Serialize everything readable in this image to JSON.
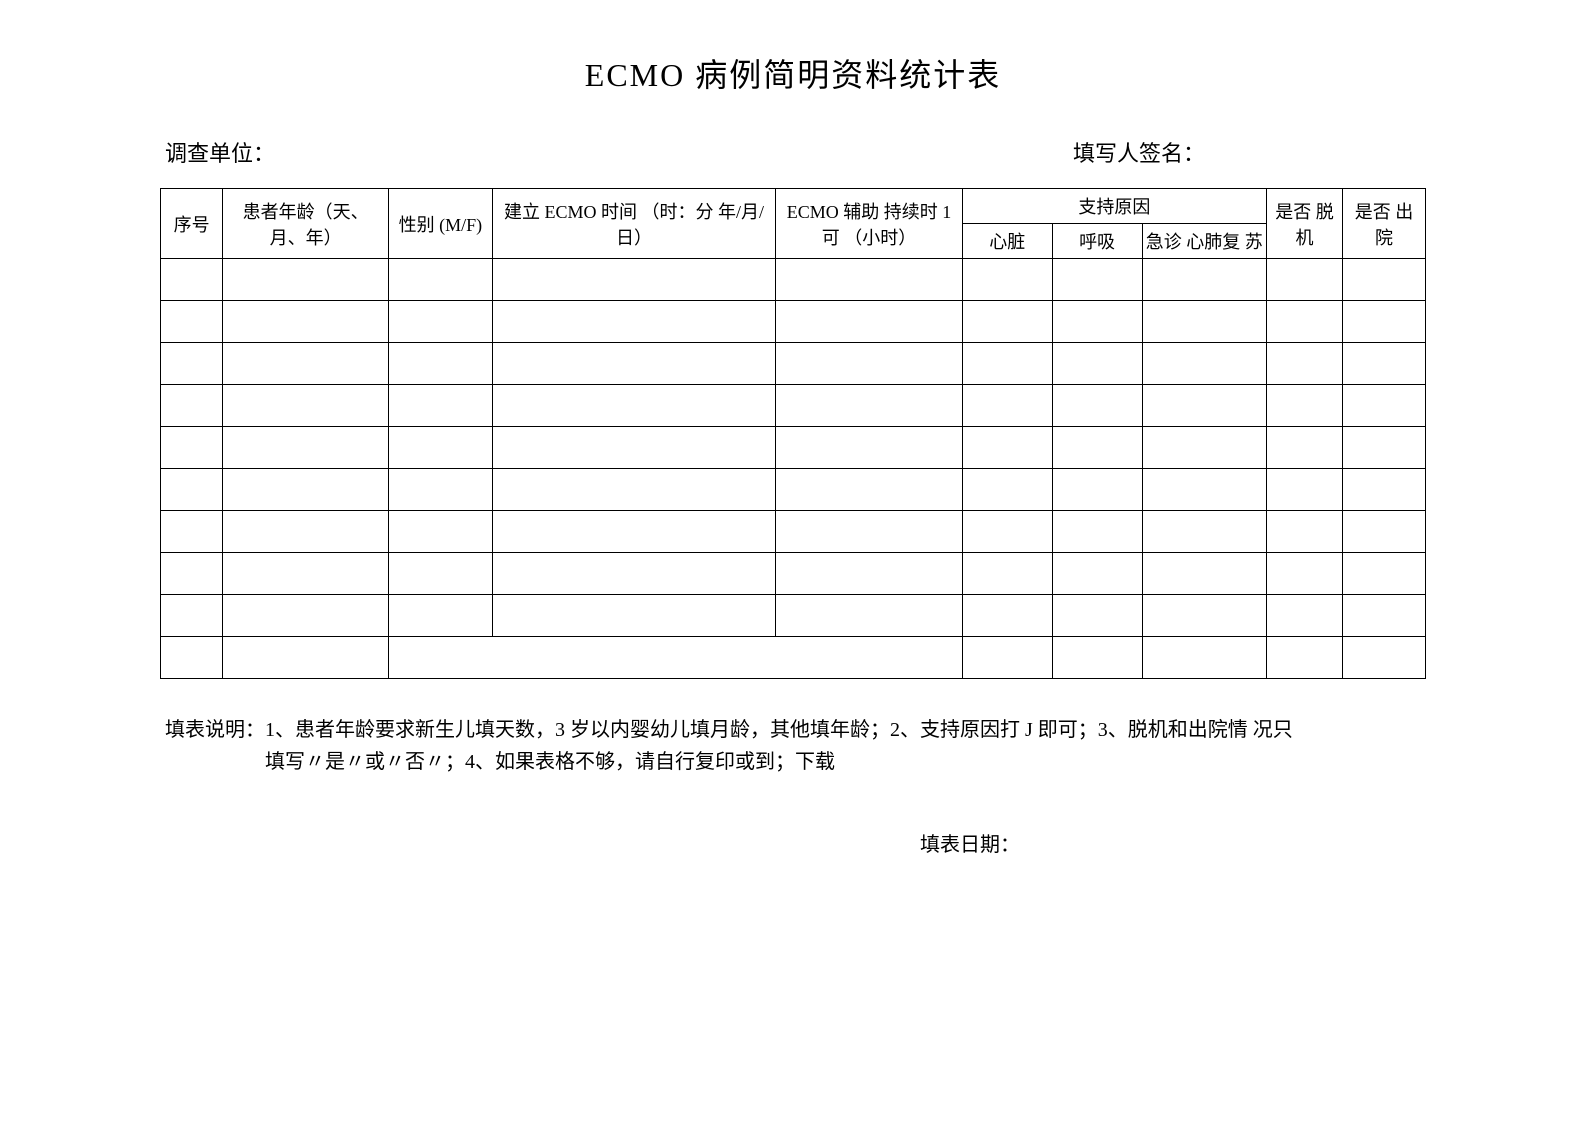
{
  "title": "ECMO 病例简明资料统计表",
  "labels": {
    "survey_unit": "调查单位：",
    "signer": "填写人签名：",
    "fill_date": "填表日期："
  },
  "table": {
    "columns": {
      "seq": "序号",
      "age": "患者年龄（天、月、年）",
      "sex": "性别 (M/F)",
      "establish_time": "建立 ECMO 时间 （时：分 年/月/日）",
      "duration": "ECMO 辅助 持续时 1 可 （小时）",
      "reason_group": "支持原因",
      "reason_heart": "心脏",
      "reason_breath": "呼吸",
      "reason_cpr": "急诊 心肺复 苏",
      "off_machine": "是否 脱 机",
      "discharge": "是否 出 院"
    },
    "row_count": 10,
    "styling": {
      "border_color": "#000000",
      "header_fontsize": 18,
      "data_row_height": 42
    }
  },
  "notes": {
    "line1": "填表说明：1、患者年龄要求新生儿填天数，3 岁以内婴幼儿填月龄，其他填年龄；2、支持原因打 J 即可；3、脱机和出院情 况只",
    "line2": "填写〃是〃或〃否〃；4、如果表格不够，请自行复印或到；下载"
  }
}
